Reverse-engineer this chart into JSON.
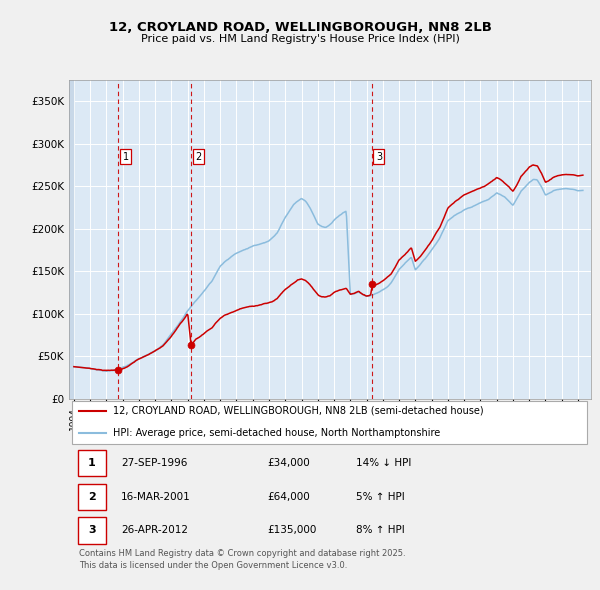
{
  "title": "12, CROYLAND ROAD, WELLINGBOROUGH, NN8 2LB",
  "subtitle": "Price paid vs. HM Land Registry's House Price Index (HPI)",
  "background_color": "#f0f0f0",
  "plot_bg_color": "#dce9f5",
  "grid_color": "#ffffff",
  "sale_color": "#cc0000",
  "hpi_color": "#8bbcdd",
  "vline_color": "#cc0000",
  "ylim": [
    0,
    375000
  ],
  "yticks": [
    0,
    50000,
    100000,
    150000,
    200000,
    250000,
    300000,
    350000
  ],
  "ytick_labels": [
    "£0",
    "£50K",
    "£100K",
    "£150K",
    "£200K",
    "£250K",
    "£300K",
    "£350K"
  ],
  "xlim_start": 1993.7,
  "xlim_end": 2025.8,
  "sales": [
    {
      "date_year": 1996.74,
      "price": 34000,
      "label": "1"
    },
    {
      "date_year": 2001.21,
      "price": 64000,
      "label": "2"
    },
    {
      "date_year": 2012.32,
      "price": 135000,
      "label": "3"
    }
  ],
  "sale_table": [
    {
      "num": "1",
      "date": "27-SEP-1996",
      "price": "£34,000",
      "hpi": "14% ↓ HPI"
    },
    {
      "num": "2",
      "date": "16-MAR-2001",
      "price": "£64,000",
      "hpi": "5% ↑ HPI"
    },
    {
      "num": "3",
      "date": "26-APR-2012",
      "price": "£135,000",
      "hpi": "8% ↑ HPI"
    }
  ],
  "legend_sale_label": "12, CROYLAND ROAD, WELLINGBOROUGH, NN8 2LB (semi-detached house)",
  "legend_hpi_label": "HPI: Average price, semi-detached house, North Northamptonshire",
  "footer": "Contains HM Land Registry data © Crown copyright and database right 2025.\nThis data is licensed under the Open Government Licence v3.0.",
  "hpi_anchors": [
    [
      1994.0,
      38000
    ],
    [
      1994.25,
      37500
    ],
    [
      1994.5,
      37000
    ],
    [
      1994.75,
      36500
    ],
    [
      1995.0,
      36000
    ],
    [
      1995.25,
      35500
    ],
    [
      1995.5,
      35000
    ],
    [
      1995.75,
      34500
    ],
    [
      1996.0,
      34000
    ],
    [
      1996.25,
      34200
    ],
    [
      1996.5,
      34500
    ],
    [
      1996.75,
      35000
    ],
    [
      1997.0,
      38000
    ],
    [
      1997.25,
      40000
    ],
    [
      1997.5,
      43000
    ],
    [
      1997.75,
      46000
    ],
    [
      1998.0,
      49500
    ],
    [
      1998.25,
      51500
    ],
    [
      1998.5,
      53500
    ],
    [
      1998.75,
      56000
    ],
    [
      1999.0,
      58500
    ],
    [
      1999.25,
      62000
    ],
    [
      1999.5,
      66000
    ],
    [
      1999.75,
      72000
    ],
    [
      2000.0,
      79000
    ],
    [
      2000.25,
      85000
    ],
    [
      2000.5,
      92000
    ],
    [
      2000.75,
      99000
    ],
    [
      2001.0,
      107000
    ],
    [
      2001.25,
      113000
    ],
    [
      2001.5,
      119000
    ],
    [
      2001.75,
      125000
    ],
    [
      2002.0,
      131000
    ],
    [
      2002.25,
      137000
    ],
    [
      2002.5,
      143000
    ],
    [
      2002.75,
      152000
    ],
    [
      2003.0,
      161000
    ],
    [
      2003.25,
      165000
    ],
    [
      2003.5,
      169000
    ],
    [
      2003.75,
      173000
    ],
    [
      2004.0,
      176500
    ],
    [
      2004.25,
      179000
    ],
    [
      2004.5,
      181000
    ],
    [
      2004.75,
      183000
    ],
    [
      2005.0,
      185000
    ],
    [
      2005.25,
      186500
    ],
    [
      2005.5,
      188000
    ],
    [
      2005.75,
      189500
    ],
    [
      2006.0,
      191000
    ],
    [
      2006.25,
      195000
    ],
    [
      2006.5,
      200000
    ],
    [
      2006.75,
      209000
    ],
    [
      2007.0,
      218000
    ],
    [
      2007.25,
      225000
    ],
    [
      2007.5,
      232000
    ],
    [
      2007.75,
      236000
    ],
    [
      2008.0,
      239000
    ],
    [
      2008.25,
      236000
    ],
    [
      2008.5,
      229000
    ],
    [
      2008.75,
      220000
    ],
    [
      2009.0,
      210000
    ],
    [
      2009.25,
      207000
    ],
    [
      2009.5,
      206000
    ],
    [
      2009.75,
      209000
    ],
    [
      2010.0,
      214000
    ],
    [
      2010.25,
      218000
    ],
    [
      2010.5,
      222000
    ],
    [
      2010.75,
      225000
    ],
    [
      2011.0,
      127000
    ],
    [
      2011.25,
      128000
    ],
    [
      2011.5,
      130000
    ],
    [
      2011.75,
      127000
    ],
    [
      2012.0,
      125000
    ],
    [
      2012.25,
      126000
    ],
    [
      2012.5,
      128000
    ],
    [
      2012.75,
      130000
    ],
    [
      2013.0,
      133000
    ],
    [
      2013.25,
      136000
    ],
    [
      2013.5,
      140000
    ],
    [
      2013.75,
      148000
    ],
    [
      2014.0,
      156000
    ],
    [
      2014.25,
      161000
    ],
    [
      2014.5,
      166000
    ],
    [
      2014.75,
      170000
    ],
    [
      2015.0,
      155000
    ],
    [
      2015.25,
      160000
    ],
    [
      2015.5,
      166000
    ],
    [
      2015.75,
      172000
    ],
    [
      2016.0,
      179000
    ],
    [
      2016.25,
      186000
    ],
    [
      2016.5,
      193000
    ],
    [
      2016.75,
      203000
    ],
    [
      2017.0,
      213000
    ],
    [
      2017.25,
      217000
    ],
    [
      2017.5,
      221000
    ],
    [
      2017.75,
      224000
    ],
    [
      2018.0,
      227000
    ],
    [
      2018.25,
      229000
    ],
    [
      2018.5,
      231000
    ],
    [
      2018.75,
      233000
    ],
    [
      2019.0,
      235000
    ],
    [
      2019.25,
      237000
    ],
    [
      2019.5,
      239000
    ],
    [
      2019.75,
      242000
    ],
    [
      2020.0,
      246000
    ],
    [
      2020.25,
      244000
    ],
    [
      2020.5,
      241000
    ],
    [
      2020.75,
      236000
    ],
    [
      2021.0,
      231000
    ],
    [
      2021.25,
      239000
    ],
    [
      2021.5,
      248000
    ],
    [
      2021.75,
      253000
    ],
    [
      2022.0,
      258000
    ],
    [
      2022.25,
      261000
    ],
    [
      2022.5,
      260000
    ],
    [
      2022.75,
      252000
    ],
    [
      2023.0,
      242000
    ],
    [
      2023.25,
      245000
    ],
    [
      2023.5,
      248000
    ],
    [
      2023.75,
      249000
    ],
    [
      2024.0,
      249000
    ],
    [
      2024.25,
      249000
    ],
    [
      2024.5,
      248000
    ],
    [
      2024.75,
      247000
    ],
    [
      2025.0,
      245000
    ],
    [
      2025.3,
      245000
    ]
  ],
  "sale_anchors": [
    [
      1994.0,
      38000
    ],
    [
      1994.25,
      37500
    ],
    [
      1994.5,
      37000
    ],
    [
      1994.75,
      36500
    ],
    [
      1995.0,
      36000
    ],
    [
      1995.25,
      35500
    ],
    [
      1995.5,
      35000
    ],
    [
      1995.75,
      34500
    ],
    [
      1996.0,
      34000
    ],
    [
      1996.25,
      34200
    ],
    [
      1996.5,
      34500
    ],
    [
      1996.74,
      34000
    ],
    [
      1997.0,
      36000
    ],
    [
      1997.25,
      38000
    ],
    [
      1997.5,
      41000
    ],
    [
      1997.75,
      44000
    ],
    [
      1998.0,
      47000
    ],
    [
      1998.25,
      49000
    ],
    [
      1998.5,
      51000
    ],
    [
      1998.75,
      53500
    ],
    [
      1999.0,
      56000
    ],
    [
      1999.25,
      59000
    ],
    [
      1999.5,
      63000
    ],
    [
      1999.75,
      69000
    ],
    [
      2000.0,
      75000
    ],
    [
      2000.25,
      81000
    ],
    [
      2000.5,
      88000
    ],
    [
      2000.75,
      94000
    ],
    [
      2001.0,
      101000
    ],
    [
      2001.21,
      64000
    ],
    [
      2001.5,
      71000
    ],
    [
      2001.75,
      74000
    ],
    [
      2002.0,
      78000
    ],
    [
      2002.25,
      82000
    ],
    [
      2002.5,
      85000
    ],
    [
      2002.75,
      91000
    ],
    [
      2003.0,
      96000
    ],
    [
      2003.25,
      99000
    ],
    [
      2003.5,
      101000
    ],
    [
      2003.75,
      103000
    ],
    [
      2004.0,
      105000
    ],
    [
      2004.25,
      107000
    ],
    [
      2004.5,
      108000
    ],
    [
      2004.75,
      109000
    ],
    [
      2005.0,
      110000
    ],
    [
      2005.25,
      111000
    ],
    [
      2005.5,
      112000
    ],
    [
      2005.75,
      113000
    ],
    [
      2006.0,
      114000
    ],
    [
      2006.25,
      116000
    ],
    [
      2006.5,
      119000
    ],
    [
      2006.75,
      125000
    ],
    [
      2007.0,
      130000
    ],
    [
      2007.25,
      134000
    ],
    [
      2007.5,
      138000
    ],
    [
      2007.75,
      141000
    ],
    [
      2008.0,
      143000
    ],
    [
      2008.25,
      141000
    ],
    [
      2008.5,
      137000
    ],
    [
      2008.75,
      131000
    ],
    [
      2009.0,
      125000
    ],
    [
      2009.25,
      123000
    ],
    [
      2009.5,
      123000
    ],
    [
      2009.75,
      124000
    ],
    [
      2010.0,
      128000
    ],
    [
      2010.25,
      130000
    ],
    [
      2010.5,
      132000
    ],
    [
      2010.75,
      134000
    ],
    [
      2011.0,
      127000
    ],
    [
      2011.25,
      128000
    ],
    [
      2011.5,
      130000
    ],
    [
      2011.75,
      127000
    ],
    [
      2012.0,
      125000
    ],
    [
      2012.25,
      126500
    ],
    [
      2012.32,
      135000
    ],
    [
      2012.5,
      138000
    ],
    [
      2012.75,
      140000
    ],
    [
      2013.0,
      143000
    ],
    [
      2013.25,
      147000
    ],
    [
      2013.5,
      151000
    ],
    [
      2013.75,
      159000
    ],
    [
      2014.0,
      168000
    ],
    [
      2014.25,
      173000
    ],
    [
      2014.5,
      178000
    ],
    [
      2014.75,
      183000
    ],
    [
      2015.0,
      167000
    ],
    [
      2015.25,
      172000
    ],
    [
      2015.5,
      178000
    ],
    [
      2015.75,
      185000
    ],
    [
      2016.0,
      192000
    ],
    [
      2016.25,
      200000
    ],
    [
      2016.5,
      207000
    ],
    [
      2016.75,
      218000
    ],
    [
      2017.0,
      229000
    ],
    [
      2017.25,
      233000
    ],
    [
      2017.5,
      237000
    ],
    [
      2017.75,
      241000
    ],
    [
      2018.0,
      244000
    ],
    [
      2018.25,
      246000
    ],
    [
      2018.5,
      248000
    ],
    [
      2018.75,
      250000
    ],
    [
      2019.0,
      252000
    ],
    [
      2019.25,
      254000
    ],
    [
      2019.5,
      257000
    ],
    [
      2019.75,
      260000
    ],
    [
      2020.0,
      264000
    ],
    [
      2020.25,
      262000
    ],
    [
      2020.5,
      258000
    ],
    [
      2020.75,
      254000
    ],
    [
      2021.0,
      249000
    ],
    [
      2021.25,
      257000
    ],
    [
      2021.5,
      267000
    ],
    [
      2021.75,
      272000
    ],
    [
      2022.0,
      277000
    ],
    [
      2022.25,
      280000
    ],
    [
      2022.5,
      279000
    ],
    [
      2022.75,
      271000
    ],
    [
      2023.0,
      260000
    ],
    [
      2023.25,
      263000
    ],
    [
      2023.5,
      266000
    ],
    [
      2023.75,
      267000
    ],
    [
      2024.0,
      267000
    ],
    [
      2024.25,
      267000
    ],
    [
      2024.5,
      266000
    ],
    [
      2024.75,
      265000
    ],
    [
      2025.0,
      263000
    ],
    [
      2025.3,
      263000
    ]
  ]
}
